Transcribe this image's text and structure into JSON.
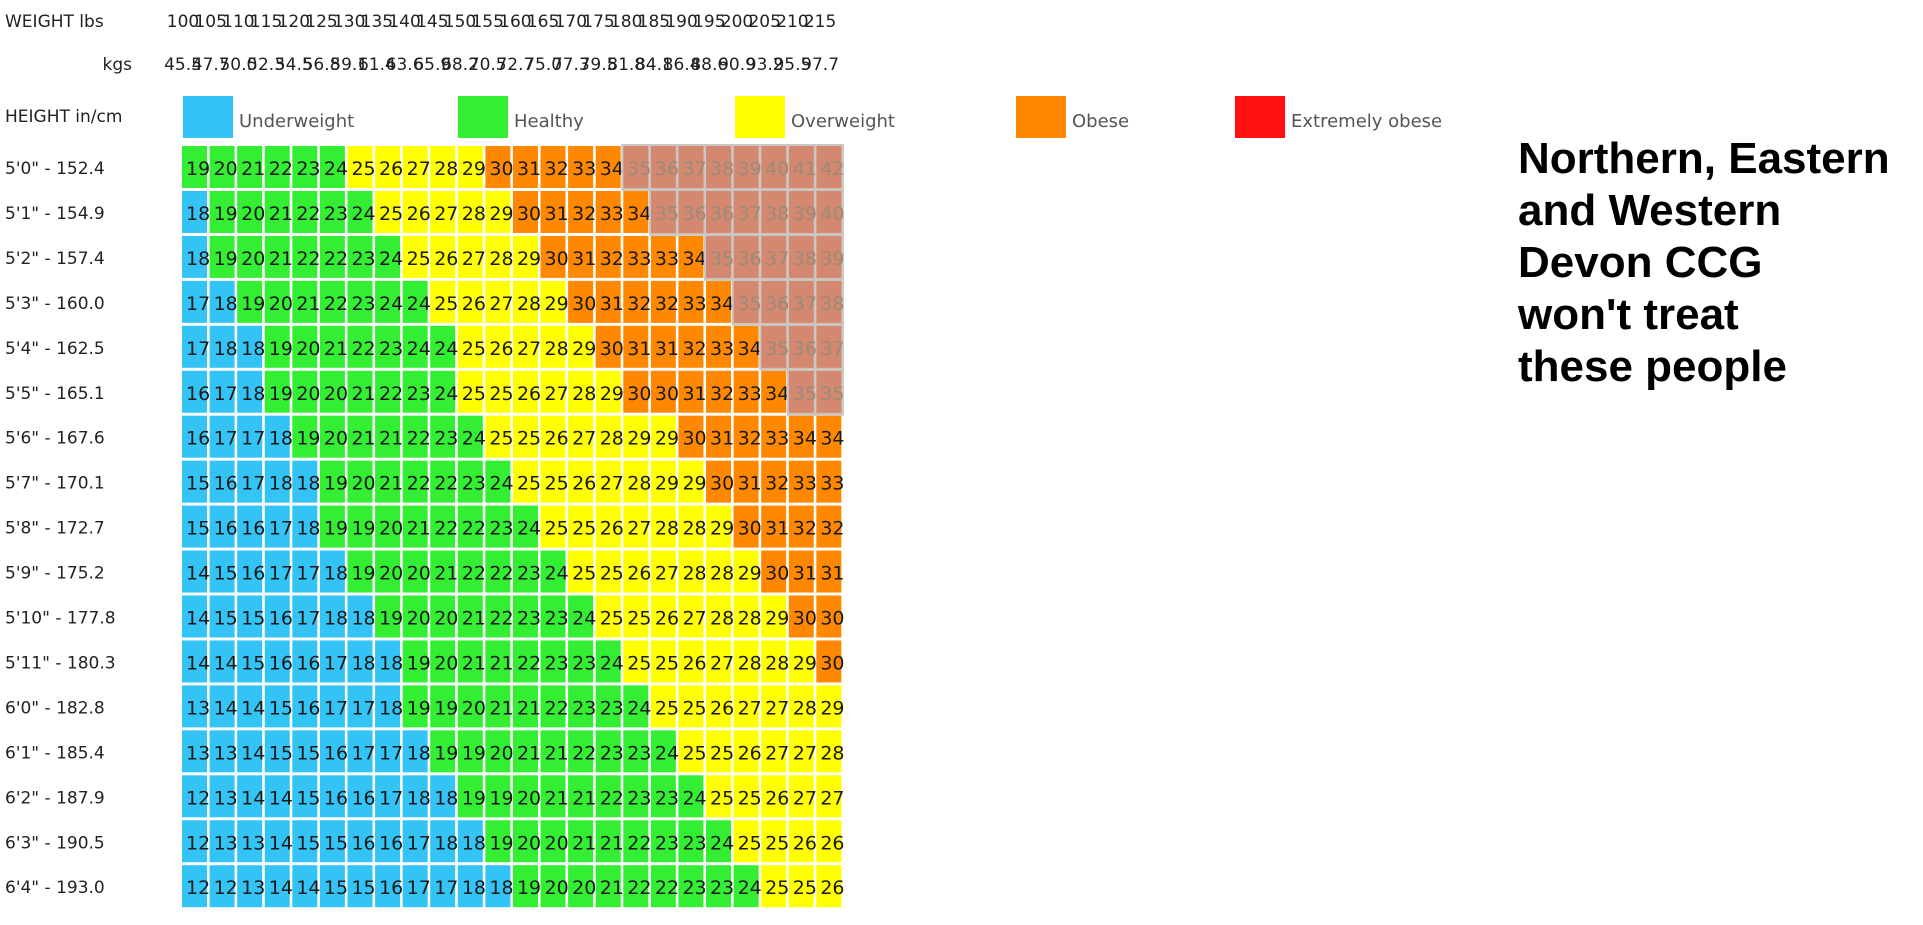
{
  "header": {
    "weight_label": "WEIGHT lbs",
    "kgs_label": "kgs",
    "height_label": "HEIGHT in/cm"
  },
  "legend": [
    {
      "label": "Underweight",
      "color": "#33c3f5"
    },
    {
      "label": "Healthy",
      "color": "#33ee33"
    },
    {
      "label": "Overweight",
      "color": "#ffff00"
    },
    {
      "label": "Obese",
      "color": "#ff8800"
    },
    {
      "label": "Extremely obese",
      "color": "#ff1111"
    }
  ],
  "annotation": {
    "lines": [
      "Northern, Eastern",
      "and Western",
      "Devon CCG",
      "won't treat",
      "these people"
    ],
    "overlay_color": "#c9aa8c"
  },
  "chart_data": {
    "type": "heatmap",
    "weights_lbs": [
      "100",
      "105",
      "110",
      "115",
      "120",
      "125",
      "130",
      "135",
      "140",
      "145",
      "150",
      "155",
      "160",
      "165",
      "170",
      "175",
      "180",
      "185",
      "190",
      "195",
      "200",
      "205",
      "210",
      "215"
    ],
    "weights_kgs": [
      "45.5",
      "47.7",
      "50.0",
      "52.3",
      "54.5",
      "56.8",
      "59.1",
      "61.4",
      "63.6",
      "65.9",
      "68.2",
      "70.5",
      "72.7",
      "75.0",
      "77.3",
      "79.5",
      "81.8",
      "84.1",
      "86.4",
      "88.6",
      "90.9",
      "93.2",
      "95.5",
      "97.7"
    ],
    "heights": [
      "5'0\" - 152.4",
      "5'1\" - 154.9",
      "5'2\" - 157.4",
      "5'3\" - 160.0",
      "5'4\" - 162.5",
      "5'5\" - 165.1",
      "5'6\" - 167.6",
      "5'7\" - 170.1",
      "5'8\" - 172.7",
      "5'9\" - 175.2",
      "5'10\" - 177.8",
      "5'11\" - 180.3",
      "6'0\" - 182.8",
      "6'1\" - 185.4",
      "6'2\" - 187.9",
      "6'3\" - 190.5",
      "6'4\" - 193.0"
    ],
    "values": [
      [
        19,
        20,
        21,
        22,
        23,
        24,
        25,
        26,
        27,
        28,
        29,
        30,
        31,
        32,
        33,
        34,
        35,
        36,
        37,
        38,
        39,
        40,
        41,
        42
      ],
      [
        18,
        19,
        20,
        21,
        22,
        23,
        24,
        25,
        26,
        27,
        28,
        29,
        30,
        31,
        32,
        33,
        34,
        35,
        36,
        36,
        37,
        38,
        39,
        40
      ],
      [
        18,
        19,
        20,
        21,
        22,
        22,
        23,
        24,
        25,
        26,
        27,
        28,
        29,
        30,
        31,
        32,
        33,
        33,
        34,
        35,
        36,
        37,
        38,
        39
      ],
      [
        17,
        18,
        19,
        20,
        21,
        22,
        23,
        24,
        24,
        25,
        26,
        27,
        28,
        29,
        30,
        31,
        32,
        32,
        33,
        34,
        35,
        36,
        37,
        38
      ],
      [
        17,
        18,
        18,
        19,
        20,
        21,
        22,
        23,
        24,
        24,
        25,
        26,
        27,
        28,
        29,
        30,
        31,
        31,
        32,
        33,
        34,
        35,
        36,
        37
      ],
      [
        16,
        17,
        18,
        19,
        20,
        20,
        21,
        22,
        23,
        24,
        25,
        25,
        26,
        27,
        28,
        29,
        30,
        30,
        31,
        32,
        33,
        34,
        35,
        35
      ],
      [
        16,
        17,
        17,
        18,
        19,
        20,
        21,
        21,
        22,
        23,
        24,
        25,
        25,
        26,
        27,
        28,
        29,
        29,
        30,
        31,
        32,
        33,
        34,
        34
      ],
      [
        15,
        16,
        17,
        18,
        18,
        19,
        20,
        21,
        22,
        22,
        23,
        24,
        25,
        25,
        26,
        27,
        28,
        29,
        29,
        30,
        31,
        32,
        33,
        33
      ],
      [
        15,
        16,
        16,
        17,
        18,
        19,
        19,
        20,
        21,
        22,
        22,
        23,
        24,
        25,
        25,
        26,
        27,
        28,
        28,
        29,
        30,
        31,
        32,
        32
      ],
      [
        14,
        15,
        16,
        17,
        17,
        18,
        19,
        20,
        20,
        21,
        22,
        22,
        23,
        24,
        25,
        25,
        26,
        27,
        28,
        28,
        29,
        30,
        31,
        31
      ],
      [
        14,
        15,
        15,
        16,
        17,
        18,
        18,
        19,
        20,
        20,
        21,
        22,
        23,
        23,
        24,
        25,
        25,
        26,
        27,
        28,
        28,
        29,
        30,
        30
      ],
      [
        14,
        14,
        15,
        16,
        16,
        17,
        18,
        18,
        19,
        20,
        21,
        21,
        22,
        23,
        23,
        24,
        25,
        25,
        26,
        27,
        28,
        28,
        29,
        30
      ],
      [
        13,
        14,
        14,
        15,
        16,
        17,
        17,
        18,
        19,
        19,
        20,
        21,
        21,
        22,
        23,
        23,
        24,
        25,
        25,
        26,
        27,
        27,
        28,
        29
      ],
      [
        13,
        13,
        14,
        15,
        15,
        16,
        17,
        17,
        18,
        19,
        19,
        20,
        21,
        21,
        22,
        23,
        23,
        24,
        25,
        25,
        26,
        27,
        27,
        28
      ],
      [
        12,
        13,
        14,
        14,
        15,
        16,
        16,
        17,
        18,
        18,
        19,
        19,
        20,
        21,
        21,
        22,
        23,
        23,
        24,
        25,
        25,
        26,
        27,
        27
      ],
      [
        12,
        13,
        13,
        14,
        15,
        15,
        16,
        16,
        17,
        18,
        18,
        19,
        20,
        20,
        21,
        21,
        22,
        23,
        23,
        24,
        25,
        25,
        26,
        26
      ],
      [
        12,
        12,
        13,
        14,
        14,
        15,
        15,
        16,
        17,
        17,
        18,
        18,
        19,
        20,
        20,
        21,
        22,
        22,
        23,
        23,
        24,
        25,
        25,
        26
      ]
    ],
    "categories": [
      {
        "name": "Underweight",
        "max": 18,
        "color": "#33c3f5"
      },
      {
        "name": "Healthy",
        "min": 19,
        "max": 24,
        "color": "#33ee33"
      },
      {
        "name": "Overweight",
        "min": 25,
        "max": 29,
        "color": "#ffff00"
      },
      {
        "name": "Obese",
        "min": 30,
        "max": 34,
        "color": "#ff8800"
      },
      {
        "name": "Extremely obese",
        "min": 35,
        "color": "#ff1111"
      }
    ],
    "highlight_threshold": 35
  }
}
